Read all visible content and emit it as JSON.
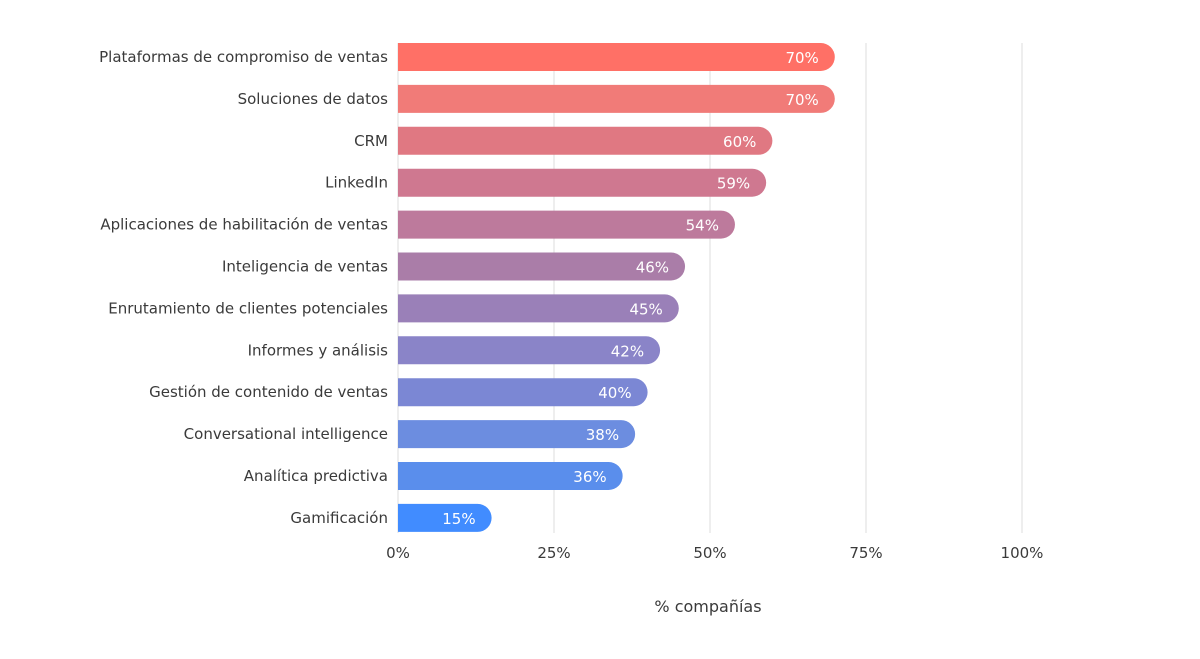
{
  "chart_data": {
    "type": "bar",
    "orientation": "horizontal",
    "categories": [
      "Plataformas de compromiso de ventas",
      "Soluciones de datos",
      "CRM",
      "LinkedIn",
      "Aplicaciones de habilitación de ventas",
      "Inteligencia de ventas",
      "Enrutamiento de clientes potenciales",
      "Informes y análisis",
      "Gestión de contenido de ventas",
      "Conversational intelligence",
      "Analítica predictiva",
      "Gamificación"
    ],
    "values": [
      70,
      70,
      60,
      59,
      54,
      46,
      45,
      42,
      40,
      38,
      36,
      15
    ],
    "value_labels": [
      "70%",
      "70%",
      "60%",
      "59%",
      "54%",
      "46%",
      "45%",
      "42%",
      "40%",
      "38%",
      "36%",
      "15%"
    ],
    "colors": [
      "#ff7066",
      "#f17b78",
      "#e07882",
      "#cf7890",
      "#bd7a9c",
      "#aa7da8",
      "#9a80b8",
      "#8a84c8",
      "#7b87d4",
      "#6c8de0",
      "#5a8eec",
      "#418cff"
    ],
    "xlim": [
      0,
      100
    ],
    "xticks": [
      0,
      25,
      50,
      75,
      100
    ],
    "xtick_labels": [
      "0%",
      "25%",
      "50%",
      "75%",
      "100%"
    ],
    "xlabel": "% compañías",
    "ylabel": "",
    "title": "",
    "grid": true,
    "grid_color": "#dddddd",
    "label_color": "#3a3a3a",
    "value_label_color": "#ffffff"
  }
}
